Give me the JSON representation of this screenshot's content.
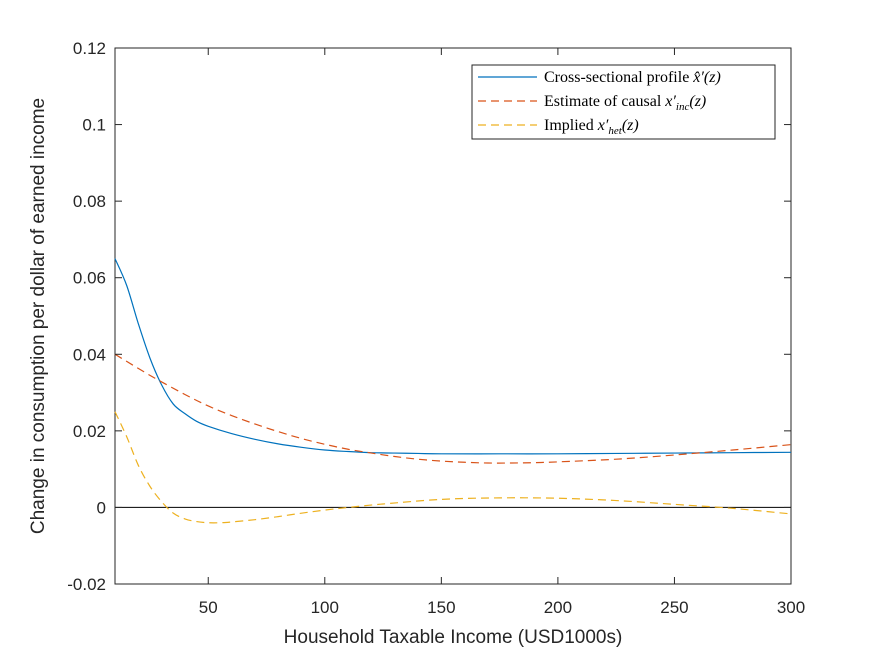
{
  "chart_data": {
    "type": "line",
    "xlabel": "Household Taxable Income (USD1000s)",
    "ylabel": "Change in consumption per dollar of earned income",
    "xlim": [
      10,
      300
    ],
    "ylim": [
      -0.02,
      0.12
    ],
    "xticks": [
      50,
      100,
      150,
      200,
      250,
      300
    ],
    "xtick_labels": [
      "50",
      "100",
      "150",
      "200",
      "250",
      "300"
    ],
    "yticks": [
      -0.02,
      0,
      0.02,
      0.04,
      0.06,
      0.08,
      0.1,
      0.12
    ],
    "ytick_labels": [
      "-0.02",
      "0",
      "0.02",
      "0.04",
      "0.06",
      "0.08",
      "0.1",
      "0.12"
    ],
    "zero_line": true,
    "grid": false,
    "legend_position": "top-right",
    "series": [
      {
        "legend_prefix": "Cross-sectional profile ",
        "legend_math": "x̂′(z)",
        "color": "#0072BD",
        "dash": "solid",
        "x": [
          10,
          15,
          20,
          25,
          30,
          35,
          40,
          45,
          50,
          60,
          70,
          80,
          90,
          100,
          110,
          120,
          130,
          140,
          150,
          175,
          200,
          225,
          250,
          275,
          300
        ],
        "y": [
          0.065,
          0.058,
          0.048,
          0.039,
          0.032,
          0.027,
          0.0245,
          0.0225,
          0.0212,
          0.0193,
          0.0178,
          0.0166,
          0.0157,
          0.015,
          0.0146,
          0.0143,
          0.0142,
          0.0141,
          0.014,
          0.014,
          0.014,
          0.0141,
          0.0142,
          0.0143,
          0.0144
        ]
      },
      {
        "legend_prefix": "Estimate of causal ",
        "legend_math_main": "x′",
        "legend_math_sub": "inc",
        "legend_math_suffix": "(z)",
        "color": "#D95319",
        "dash": "8,5",
        "x": [
          10,
          25,
          40,
          50,
          60,
          70,
          80,
          90,
          100,
          110,
          120,
          130,
          140,
          150,
          160,
          170,
          180,
          190,
          200,
          225,
          250,
          275,
          300
        ],
        "y": [
          0.04,
          0.0345,
          0.0295,
          0.0265,
          0.024,
          0.0218,
          0.0198,
          0.018,
          0.0165,
          0.0152,
          0.0142,
          0.0133,
          0.0126,
          0.0121,
          0.0118,
          0.0116,
          0.0116,
          0.0117,
          0.0119,
          0.0126,
          0.0137,
          0.015,
          0.0164
        ]
      },
      {
        "legend_prefix": "Implied ",
        "legend_math_main": "x′",
        "legend_math_sub": "het",
        "legend_math_suffix": "(z)",
        "color": "#EDB120",
        "dash": "8,5",
        "x": [
          10,
          15,
          20,
          25,
          30,
          35,
          40,
          45,
          50,
          55,
          60,
          70,
          80,
          90,
          100,
          110,
          125,
          150,
          175,
          200,
          225,
          250,
          270,
          285,
          300
        ],
        "y": [
          0.025,
          0.0185,
          0.011,
          0.0055,
          0.0015,
          -0.0015,
          -0.003,
          -0.0037,
          -0.004,
          -0.004,
          -0.0038,
          -0.0032,
          -0.0024,
          -0.0015,
          -0.0007,
          0.0,
          0.0009,
          0.0021,
          0.0025,
          0.0024,
          0.0018,
          0.0008,
          0.0,
          -0.0008,
          -0.0017
        ]
      }
    ]
  }
}
